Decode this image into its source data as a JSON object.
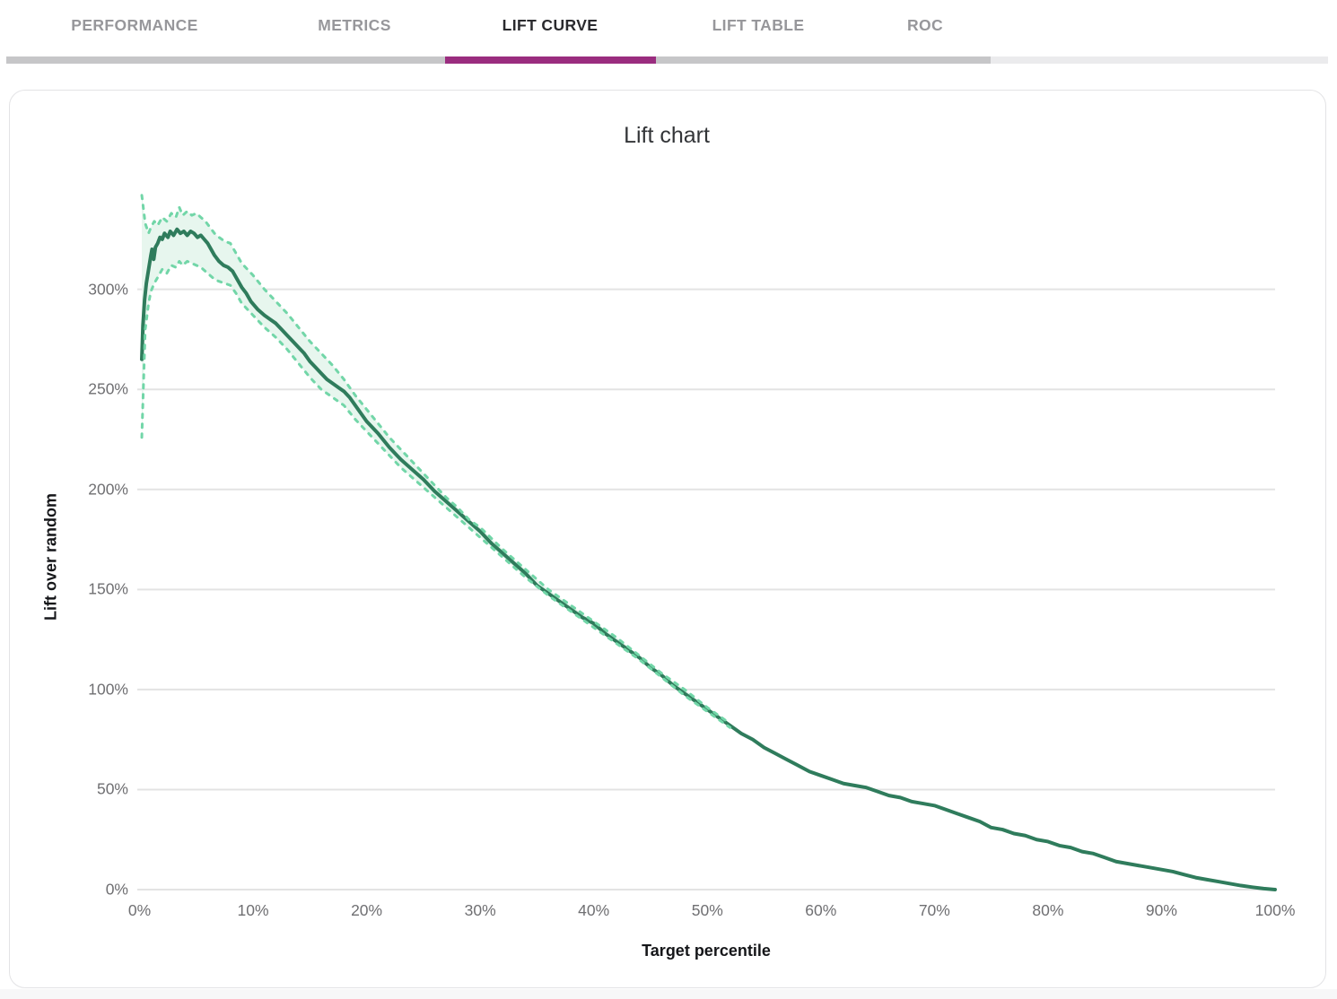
{
  "tabs": {
    "items": [
      {
        "label": "PERFORMANCE",
        "active": false
      },
      {
        "label": "METRICS",
        "active": false
      },
      {
        "label": "LIFT CURVE",
        "active": true
      },
      {
        "label": "LIFT TABLE",
        "active": false
      },
      {
        "label": "ROC",
        "active": false
      }
    ]
  },
  "colors": {
    "active_tab_underline": "#9a2d7f",
    "tab_track_dark": "#c6c6c8",
    "tab_track_light": "#ebebed",
    "lift_line": "#2f7c5c",
    "confidence_dash": "#72d6a8",
    "confidence_fill": "#e3f5eb",
    "gridline": "#e3e3e3",
    "tick_text": "#6f6f72"
  },
  "chart_data": {
    "type": "line",
    "title": "Lift chart",
    "xlabel": "Target percentile",
    "ylabel": "Lift over random",
    "xlim": [
      0,
      100
    ],
    "ylim": [
      0,
      350
    ],
    "grid": "horizontal",
    "legend": "none",
    "x_ticks": [
      {
        "value": 0,
        "label": "0%"
      },
      {
        "value": 10,
        "label": "10%"
      },
      {
        "value": 20,
        "label": "20%"
      },
      {
        "value": 30,
        "label": "30%"
      },
      {
        "value": 40,
        "label": "40%"
      },
      {
        "value": 50,
        "label": "50%"
      },
      {
        "value": 60,
        "label": "60%"
      },
      {
        "value": 70,
        "label": "70%"
      },
      {
        "value": 80,
        "label": "80%"
      },
      {
        "value": 90,
        "label": "90%"
      },
      {
        "value": 100,
        "label": "100%"
      }
    ],
    "y_ticks": [
      {
        "value": 0,
        "label": "0%"
      },
      {
        "value": 50,
        "label": "50%"
      },
      {
        "value": 100,
        "label": "100%"
      },
      {
        "value": 150,
        "label": "150%"
      },
      {
        "value": 200,
        "label": "200%"
      },
      {
        "value": 250,
        "label": "250%"
      },
      {
        "value": 300,
        "label": "300%"
      }
    ],
    "series": [
      {
        "name": "lift",
        "style": "solid",
        "points": [
          [
            0.2,
            265
          ],
          [
            0.3,
            282
          ],
          [
            0.45,
            295
          ],
          [
            0.6,
            303
          ],
          [
            0.8,
            310
          ],
          [
            1.0,
            317
          ],
          [
            1.1,
            320
          ],
          [
            1.25,
            315
          ],
          [
            1.4,
            321
          ],
          [
            1.6,
            323
          ],
          [
            1.8,
            326
          ],
          [
            2.0,
            325
          ],
          [
            2.2,
            328
          ],
          [
            2.5,
            326
          ],
          [
            2.7,
            329
          ],
          [
            3.0,
            327
          ],
          [
            3.3,
            330
          ],
          [
            3.6,
            328
          ],
          [
            3.9,
            329
          ],
          [
            4.2,
            327
          ],
          [
            4.5,
            329
          ],
          [
            4.8,
            328
          ],
          [
            5.1,
            326
          ],
          [
            5.4,
            327
          ],
          [
            5.7,
            325
          ],
          [
            6.0,
            323
          ],
          [
            6.3,
            320
          ],
          [
            6.6,
            317
          ],
          [
            7.0,
            314
          ],
          [
            7.4,
            312
          ],
          [
            7.8,
            311
          ],
          [
            8.2,
            309
          ],
          [
            8.6,
            305
          ],
          [
            9.0,
            301
          ],
          [
            9.4,
            298
          ],
          [
            9.8,
            294
          ],
          [
            10.4,
            290
          ],
          [
            11,
            287
          ],
          [
            11.5,
            285
          ],
          [
            12,
            283
          ],
          [
            12.5,
            280
          ],
          [
            13,
            277
          ],
          [
            13.5,
            274
          ],
          [
            14,
            271
          ],
          [
            14.5,
            268
          ],
          [
            15,
            264
          ],
          [
            15.5,
            261
          ],
          [
            16,
            258
          ],
          [
            16.5,
            255
          ],
          [
            17,
            253
          ],
          [
            17.5,
            251
          ],
          [
            18,
            249
          ],
          [
            18.5,
            246
          ],
          [
            19,
            242
          ],
          [
            19.5,
            238
          ],
          [
            20,
            234
          ],
          [
            21,
            228
          ],
          [
            22,
            221
          ],
          [
            23,
            215
          ],
          [
            24,
            210
          ],
          [
            25,
            205
          ],
          [
            26,
            199
          ],
          [
            27,
            194
          ],
          [
            28,
            189
          ],
          [
            29,
            184
          ],
          [
            30,
            179
          ],
          [
            31,
            173
          ],
          [
            32,
            168
          ],
          [
            33,
            163
          ],
          [
            34,
            158
          ],
          [
            35,
            152
          ],
          [
            36,
            148
          ],
          [
            37,
            144
          ],
          [
            38,
            140
          ],
          [
            39,
            136
          ],
          [
            40,
            133
          ],
          [
            41,
            128
          ],
          [
            42,
            124
          ],
          [
            43,
            120
          ],
          [
            44,
            116
          ],
          [
            45,
            111
          ],
          [
            46,
            107
          ],
          [
            47,
            102
          ],
          [
            48,
            98
          ],
          [
            49,
            94
          ],
          [
            50,
            90
          ],
          [
            51,
            86
          ],
          [
            52,
            82
          ],
          [
            53,
            78
          ],
          [
            54,
            75
          ],
          [
            55,
            71
          ],
          [
            56,
            68
          ],
          [
            57,
            65
          ],
          [
            58,
            62
          ],
          [
            59,
            59
          ],
          [
            60,
            57
          ],
          [
            61,
            55
          ],
          [
            62,
            53
          ],
          [
            63,
            52
          ],
          [
            64,
            51
          ],
          [
            65,
            49
          ],
          [
            66,
            47
          ],
          [
            67,
            46
          ],
          [
            68,
            44
          ],
          [
            69,
            43
          ],
          [
            70,
            42
          ],
          [
            71,
            40
          ],
          [
            72,
            38
          ],
          [
            73,
            36
          ],
          [
            74,
            34
          ],
          [
            75,
            31
          ],
          [
            76,
            30
          ],
          [
            77,
            28
          ],
          [
            78,
            27
          ],
          [
            79,
            25
          ],
          [
            80,
            24
          ],
          [
            81,
            22
          ],
          [
            82,
            21
          ],
          [
            83,
            19
          ],
          [
            84,
            18
          ],
          [
            85,
            16
          ],
          [
            86,
            14
          ],
          [
            87,
            13
          ],
          [
            88,
            12
          ],
          [
            89,
            11
          ],
          [
            90,
            10
          ],
          [
            91,
            9
          ],
          [
            92,
            7.5
          ],
          [
            93,
            6
          ],
          [
            94,
            5
          ],
          [
            95,
            4
          ],
          [
            96,
            3
          ],
          [
            97,
            2
          ],
          [
            98,
            1.2
          ],
          [
            99,
            0.5
          ],
          [
            100,
            0
          ]
        ]
      },
      {
        "name": "upper-bound",
        "style": "dashed",
        "points": [
          [
            0.2,
            347
          ],
          [
            0.5,
            333
          ],
          [
            0.8,
            328
          ],
          [
            1.0,
            331
          ],
          [
            1.3,
            334
          ],
          [
            1.6,
            332
          ],
          [
            2.0,
            336
          ],
          [
            2.4,
            334
          ],
          [
            2.8,
            338
          ],
          [
            3.2,
            336
          ],
          [
            3.5,
            341
          ],
          [
            3.8,
            337
          ],
          [
            4.2,
            339
          ],
          [
            4.6,
            337
          ],
          [
            5.0,
            338
          ],
          [
            5.4,
            336
          ],
          [
            5.8,
            334
          ],
          [
            6.2,
            331
          ],
          [
            6.6,
            328
          ],
          [
            7.0,
            326
          ],
          [
            7.5,
            324
          ],
          [
            8.0,
            323
          ],
          [
            8.5,
            318
          ],
          [
            9.0,
            313
          ],
          [
            9.5,
            310
          ],
          [
            10,
            307
          ],
          [
            11,
            300
          ],
          [
            12,
            294
          ],
          [
            13,
            288
          ],
          [
            14,
            281
          ],
          [
            15,
            274
          ],
          [
            16,
            268
          ],
          [
            17,
            262
          ],
          [
            18,
            255
          ],
          [
            19,
            247
          ],
          [
            20,
            240
          ],
          [
            21,
            233
          ],
          [
            22,
            226
          ],
          [
            23,
            220
          ],
          [
            24,
            214
          ],
          [
            25,
            208
          ],
          [
            26,
            202
          ],
          [
            27,
            196
          ],
          [
            28,
            191
          ],
          [
            29,
            185
          ],
          [
            30,
            181
          ],
          [
            32,
            170
          ],
          [
            34,
            160
          ],
          [
            36,
            150
          ],
          [
            38,
            142
          ],
          [
            40,
            134
          ],
          [
            42,
            126
          ],
          [
            44,
            117
          ],
          [
            46,
            108
          ],
          [
            48,
            100
          ],
          [
            50,
            91
          ],
          [
            52,
            83
          ]
        ]
      },
      {
        "name": "lower-bound",
        "style": "dashed",
        "points": [
          [
            0.2,
            226
          ],
          [
            0.5,
            280
          ],
          [
            0.8,
            293
          ],
          [
            1.0,
            299
          ],
          [
            1.3,
            303
          ],
          [
            1.6,
            306
          ],
          [
            2.0,
            310
          ],
          [
            2.4,
            308
          ],
          [
            2.8,
            312
          ],
          [
            3.2,
            311
          ],
          [
            3.5,
            314
          ],
          [
            3.8,
            312
          ],
          [
            4.2,
            314
          ],
          [
            4.6,
            313
          ],
          [
            5.0,
            312
          ],
          [
            5.4,
            311
          ],
          [
            5.8,
            309
          ],
          [
            6.2,
            307
          ],
          [
            6.6,
            305
          ],
          [
            7.0,
            304
          ],
          [
            7.5,
            303
          ],
          [
            8.0,
            302
          ],
          [
            8.5,
            298
          ],
          [
            9.0,
            293
          ],
          [
            9.5,
            290
          ],
          [
            10,
            287
          ],
          [
            11,
            281
          ],
          [
            12,
            276
          ],
          [
            13,
            270
          ],
          [
            14,
            263
          ],
          [
            15,
            256
          ],
          [
            16,
            250
          ],
          [
            17,
            246
          ],
          [
            18,
            242
          ],
          [
            19,
            235
          ],
          [
            20,
            229
          ],
          [
            21,
            223
          ],
          [
            22,
            217
          ],
          [
            23,
            211
          ],
          [
            24,
            206
          ],
          [
            25,
            201
          ],
          [
            26,
            196
          ],
          [
            27,
            191
          ],
          [
            28,
            186
          ],
          [
            29,
            181
          ],
          [
            30,
            176
          ],
          [
            32,
            166
          ],
          [
            34,
            156
          ],
          [
            36,
            147
          ],
          [
            38,
            139
          ],
          [
            40,
            131
          ],
          [
            42,
            123
          ],
          [
            44,
            115
          ],
          [
            46,
            106
          ],
          [
            48,
            97
          ],
          [
            50,
            89
          ],
          [
            52,
            81
          ]
        ]
      }
    ],
    "band": {
      "between": [
        "upper-bound",
        "lower-bound"
      ]
    }
  }
}
